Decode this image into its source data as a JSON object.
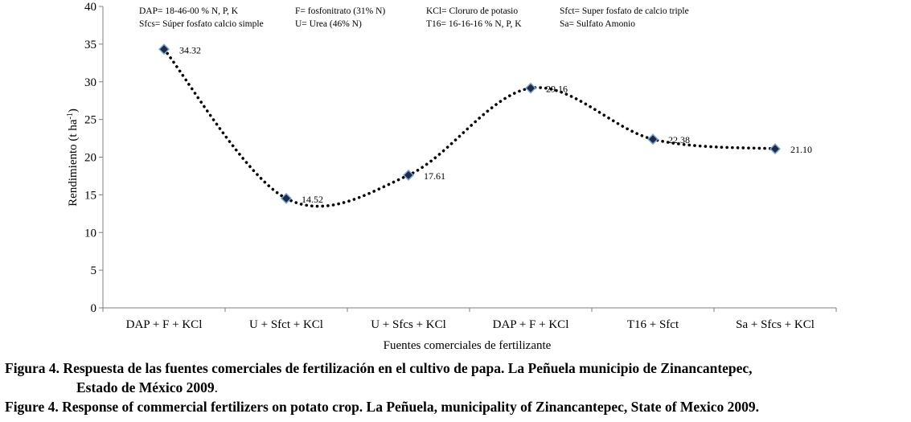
{
  "chart_data": {
    "type": "line",
    "categories": [
      "DAP + F + KCl",
      "U + Sfct + KCl",
      "U + Sfcs + KCl",
      "DAP + F + KCl",
      "T16 + Sfct",
      "Sa + Sfcs + KCl"
    ],
    "values": [
      34.32,
      14.52,
      17.61,
      29.16,
      22.38,
      21.1
    ],
    "data_labels": [
      "34.32",
      "14.52",
      "17.61",
      "29.16",
      "22.38",
      "21.10"
    ],
    "ylim": [
      0,
      40
    ],
    "yticks": [
      "0",
      "5",
      "10",
      "15",
      "20",
      "25",
      "30",
      "35",
      "40"
    ],
    "xlabel": "Fuentes comerciales de fertilizante",
    "ylabel": "Rendimiento (t ha",
    "ylabel_sup": "-1",
    "ylabel_end": ")",
    "legend": [
      [
        "DAP= 18-46-00 % N, P, K",
        "F= fosfonitrato (31% N)",
        "KCl= Cloruro de potasio",
        "Sfct= Super fosfato de calcio triple"
      ],
      [
        "Sfcs= Súper fosfato calcio simple",
        "U= Urea (46% N)",
        "T16= 16-16-16 % N, P, K",
        "Sa= Sulfato Amonio"
      ]
    ],
    "colors": {
      "line": "#000000",
      "marker": "#1f2a44",
      "marker_edge": "#7fa7d9"
    }
  },
  "caption": {
    "es_lead": "Figura 4. Respuesta de las fuentes comerciales de fertilización en el cultivo de papa. La Peñuela municipio de Zinancantepec,",
    "es_cont": "Estado de México 2009",
    "es_end": ".",
    "en": "Figure 4. Response of commercial fertilizers on potato crop. La Peñuela, municipality of Zinancantepec, State of Mexico 2009."
  }
}
